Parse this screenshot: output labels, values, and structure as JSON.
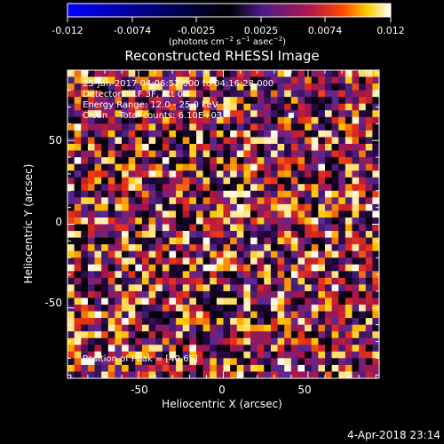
{
  "chart_data": {
    "type": "heatmap",
    "title": "Reconstructed RHESSI Image",
    "xlabel": "Heliocentric X (arcsec)",
    "ylabel": "Heliocentric Y (arcsec)",
    "xlim": [
      -92,
      92
    ],
    "ylim": [
      -92,
      92
    ],
    "xticks": [
      -50,
      0,
      50
    ],
    "yticks": [
      -50,
      0,
      50
    ],
    "colorbar": {
      "ticks": [
        "-0.012",
        "-0.0074",
        "-0.0025",
        "0.0025",
        "0.0074",
        "0.012"
      ],
      "min": -0.012,
      "max": 0.012,
      "colormap": "blue-black-purple-red-yellow-white"
    },
    "grid_size": 46,
    "grid_seed": 9173,
    "annotations": {
      "time_range": "25-Jan-2017 04:06:52.000 to 04:16:28.000",
      "detectors": "Detectors: 1F 3F, Att 0",
      "energy_range": "Energy Range: 12.0 - 25.0 keV",
      "clean_counts": "Clean    Total counts: 6.10E+03",
      "peak": "Position of Peak = [40,65]"
    },
    "timestamp": "4-Apr-2018 23:14"
  }
}
